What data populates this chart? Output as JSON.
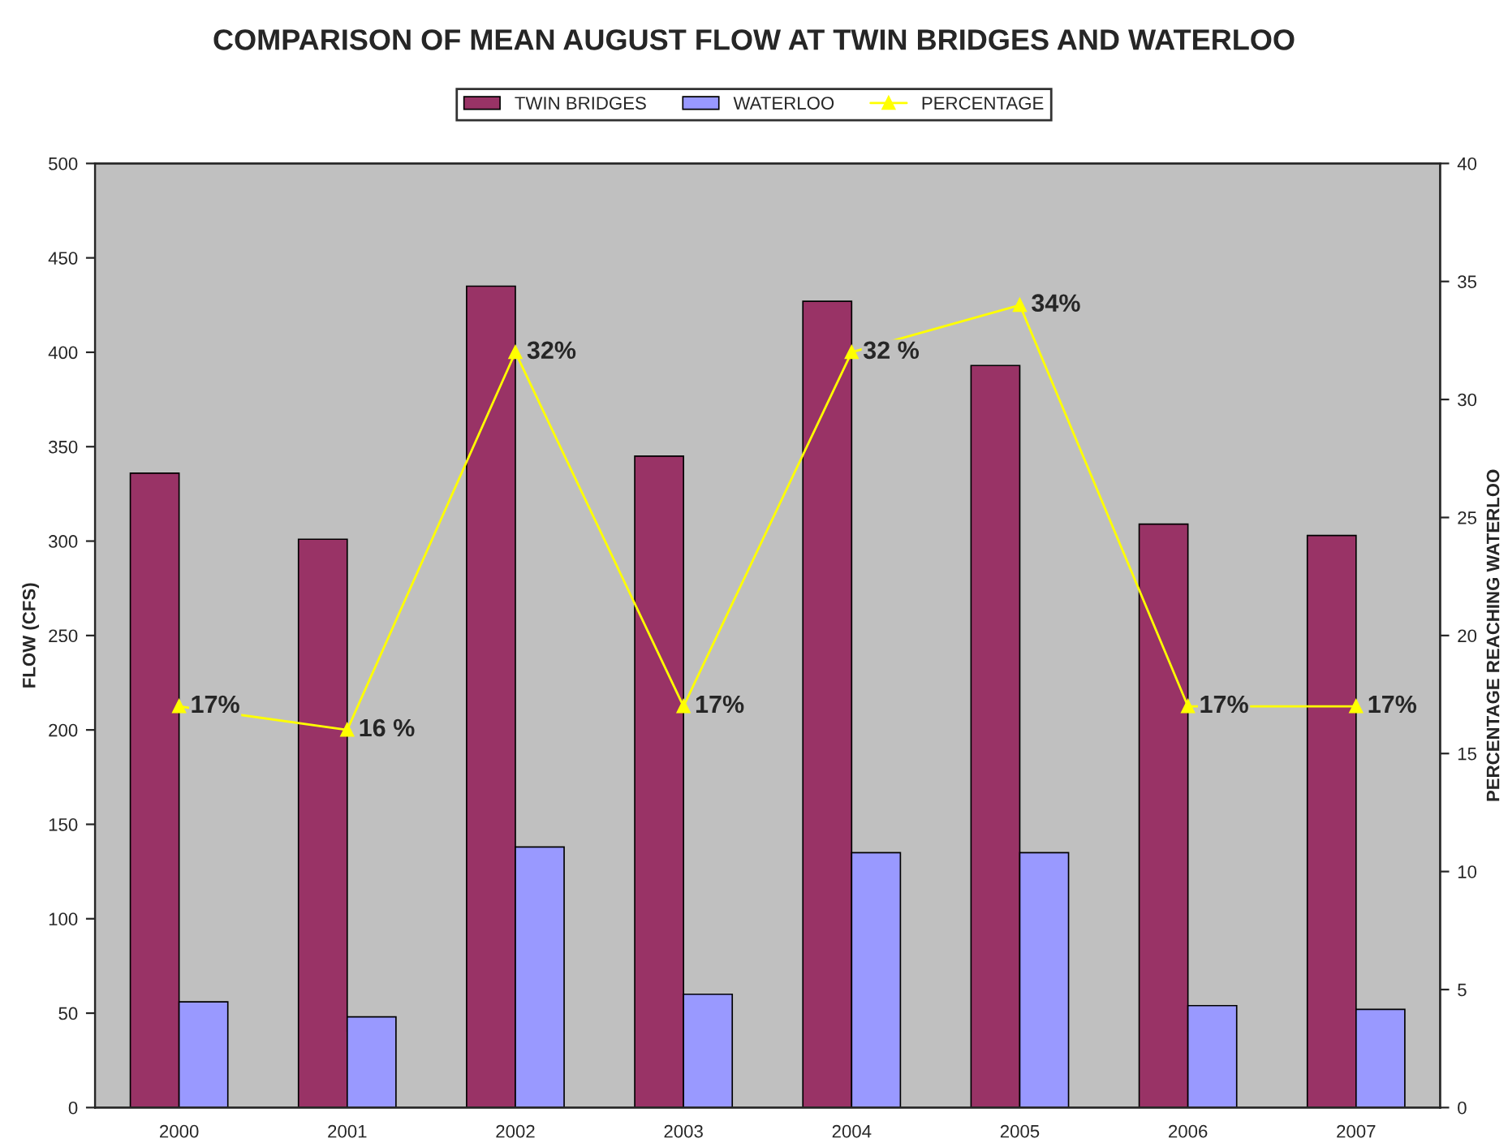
{
  "chart_data": {
    "type": "bar",
    "title": "COMPARISON OF MEAN AUGUST FLOW AT TWIN BRIDGES AND WATERLOO",
    "categories": [
      "2000",
      "2001",
      "2002",
      "2003",
      "2004",
      "2005",
      "2006",
      "2007"
    ],
    "series": [
      {
        "name": "TWIN BRIDGES",
        "color": "#993366",
        "values": [
          336,
          301,
          435,
          345,
          427,
          393,
          309,
          303
        ]
      },
      {
        "name": "WATERLOO",
        "color": "#9999ff",
        "values": [
          56,
          48,
          138,
          60,
          135,
          135,
          54,
          52
        ]
      },
      {
        "name": "PERCENTAGE",
        "type": "line",
        "axis": "y2",
        "color": "#ffff00",
        "marker": "triangle",
        "values": [
          17,
          16,
          32,
          17,
          32,
          34,
          17,
          17
        ],
        "value_labels": [
          "17%",
          "16 %",
          "32%",
          "17%",
          "32 %",
          "34%",
          "17%",
          "17%"
        ]
      }
    ],
    "ylabel": "FLOW (CFS)",
    "y2label": "PERCENTAGE REACHING WATERLOO",
    "ylim": [
      0,
      500
    ],
    "yticks": [
      0,
      50,
      100,
      150,
      200,
      250,
      300,
      350,
      400,
      450,
      500
    ],
    "y2lim": [
      0,
      40
    ],
    "y2ticks": [
      0,
      5,
      10,
      15,
      20,
      25,
      30,
      35,
      40
    ],
    "grid": false,
    "legend": "top"
  }
}
